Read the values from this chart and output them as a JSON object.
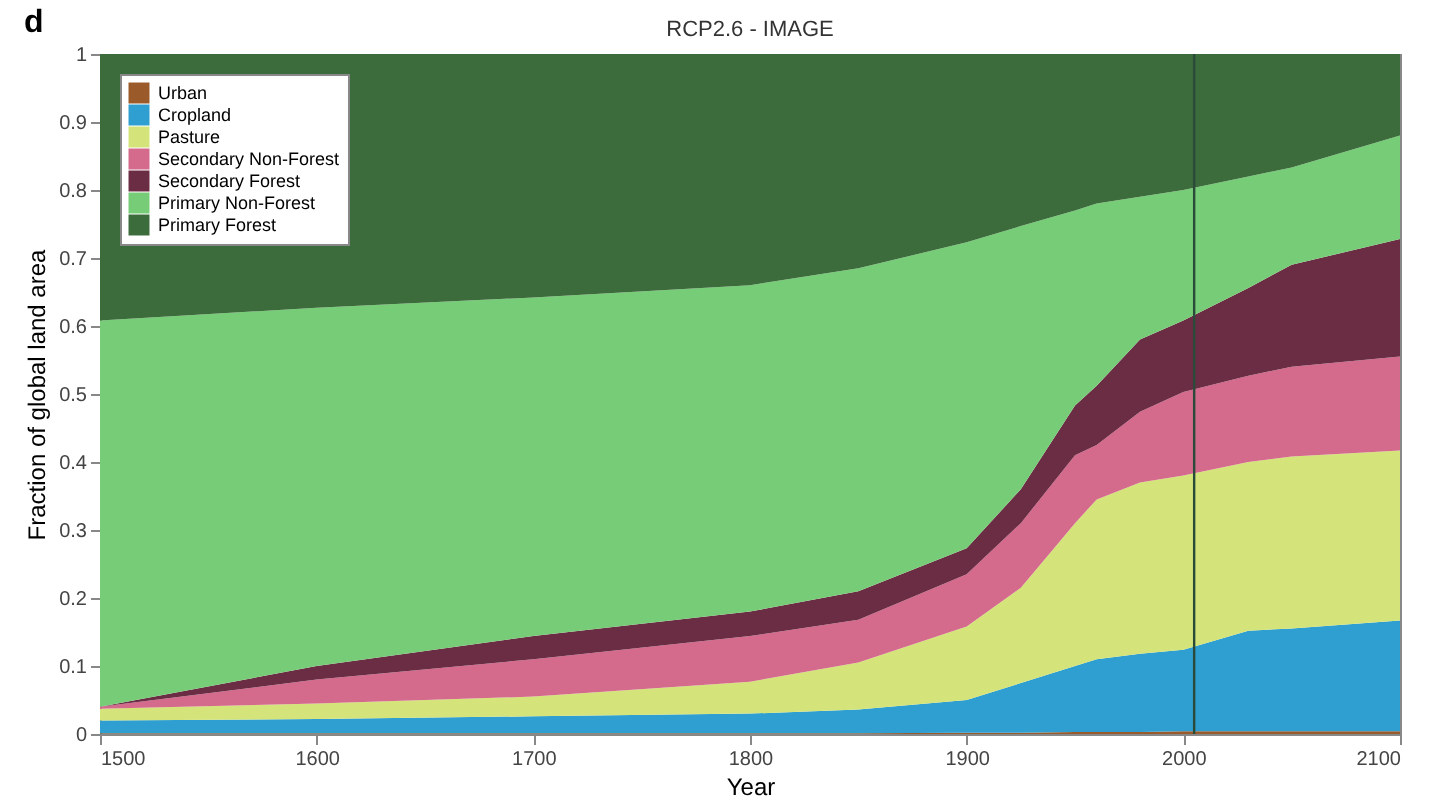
{
  "chart_data": {
    "type": "area",
    "title": "RCP2.6 - IMAGE",
    "xlabel": "Year",
    "ylabel": "Fraction of global land area",
    "annotations": [
      "d"
    ],
    "stacked": true,
    "legend": "top left",
    "grid": false,
    "x": [
      1500,
      1600,
      1700,
      1800,
      1850,
      1900,
      1925,
      1950,
      1960,
      1980,
      2000,
      2030,
      2050,
      2100
    ],
    "xlim": [
      1500,
      2100
    ],
    "xticks": [
      1500,
      1600,
      1700,
      1800,
      1900,
      2000,
      2100
    ],
    "ylim": [
      0,
      1
    ],
    "yticks": [
      0,
      0.1,
      0.2,
      0.3,
      0.4,
      0.5,
      0.6,
      0.7,
      0.8,
      0.9,
      1
    ],
    "series": [
      {
        "name": "Urban",
        "color": "#9b5a2a",
        "values": [
          0.001,
          0.001,
          0.001,
          0.001,
          0.001,
          0.002,
          0.002,
          0.003,
          0.003,
          0.003,
          0.004,
          0.004,
          0.004,
          0.004
        ]
      },
      {
        "name": "Cropland",
        "color": "#2e9fd0",
        "values": [
          0.019,
          0.021,
          0.025,
          0.029,
          0.035,
          0.048,
          0.073,
          0.097,
          0.107,
          0.115,
          0.12,
          0.148,
          0.151,
          0.163
        ]
      },
      {
        "name": "Pasture",
        "color": "#d4e47a",
        "values": [
          0.017,
          0.023,
          0.029,
          0.047,
          0.069,
          0.108,
          0.14,
          0.21,
          0.235,
          0.252,
          0.256,
          0.248,
          0.253,
          0.25
        ]
      },
      {
        "name": "Secondary Non-Forest",
        "color": "#d46a8c",
        "values": [
          0.003,
          0.035,
          0.055,
          0.067,
          0.063,
          0.077,
          0.095,
          0.1,
          0.08,
          0.104,
          0.123,
          0.127,
          0.132,
          0.138
        ]
      },
      {
        "name": "Secondary Forest",
        "color": "#6b2d44",
        "values": [
          0,
          0.02,
          0.034,
          0.036,
          0.042,
          0.038,
          0.05,
          0.073,
          0.087,
          0.106,
          0.105,
          0.129,
          0.15,
          0.173
        ]
      },
      {
        "name": "Primary Non-Forest",
        "color": "#77cc77",
        "values": [
          0.568,
          0.527,
          0.498,
          0.48,
          0.475,
          0.45,
          0.387,
          0.287,
          0.268,
          0.21,
          0.192,
          0.164,
          0.143,
          0.152
        ]
      },
      {
        "name": "Primary Forest",
        "color": "#3c6b3c",
        "values": [
          0.392,
          0.373,
          0.358,
          0.34,
          0.315,
          0.277,
          0.253,
          0.23,
          0.22,
          0.21,
          0.2,
          0.18,
          0.167,
          0.12
        ]
      }
    ],
    "ref_lines": [
      {
        "axis": "x",
        "value": 2005,
        "color": "#2a4a3a"
      }
    ]
  }
}
